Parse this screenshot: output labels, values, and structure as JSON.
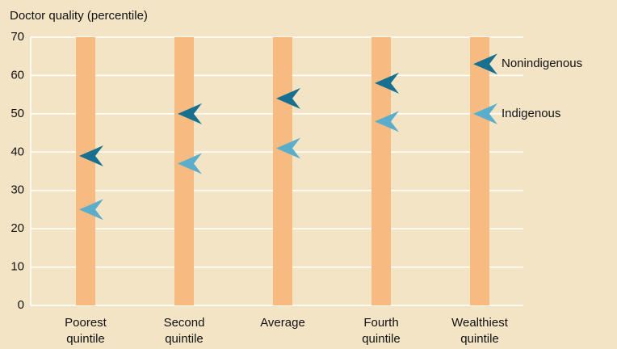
{
  "chart_data": {
    "type": "arrow",
    "y_label": "Doctor quality (percentile)",
    "categories": [
      "Poorest quintile",
      "Second quintile",
      "Average",
      "Fourth quintile",
      "Wealthiest quintile"
    ],
    "series": [
      {
        "name": "Nonindigenous",
        "color": "#17708f",
        "values": [
          39,
          50,
          54,
          58,
          63
        ]
      },
      {
        "name": "Indigenous",
        "color": "#5aaecc",
        "values": [
          25,
          37,
          41,
          48,
          50
        ]
      }
    ],
    "ylim": [
      0,
      70
    ],
    "yticks": [
      0,
      10,
      20,
      30,
      40,
      50,
      60,
      70
    ],
    "grid": true
  }
}
